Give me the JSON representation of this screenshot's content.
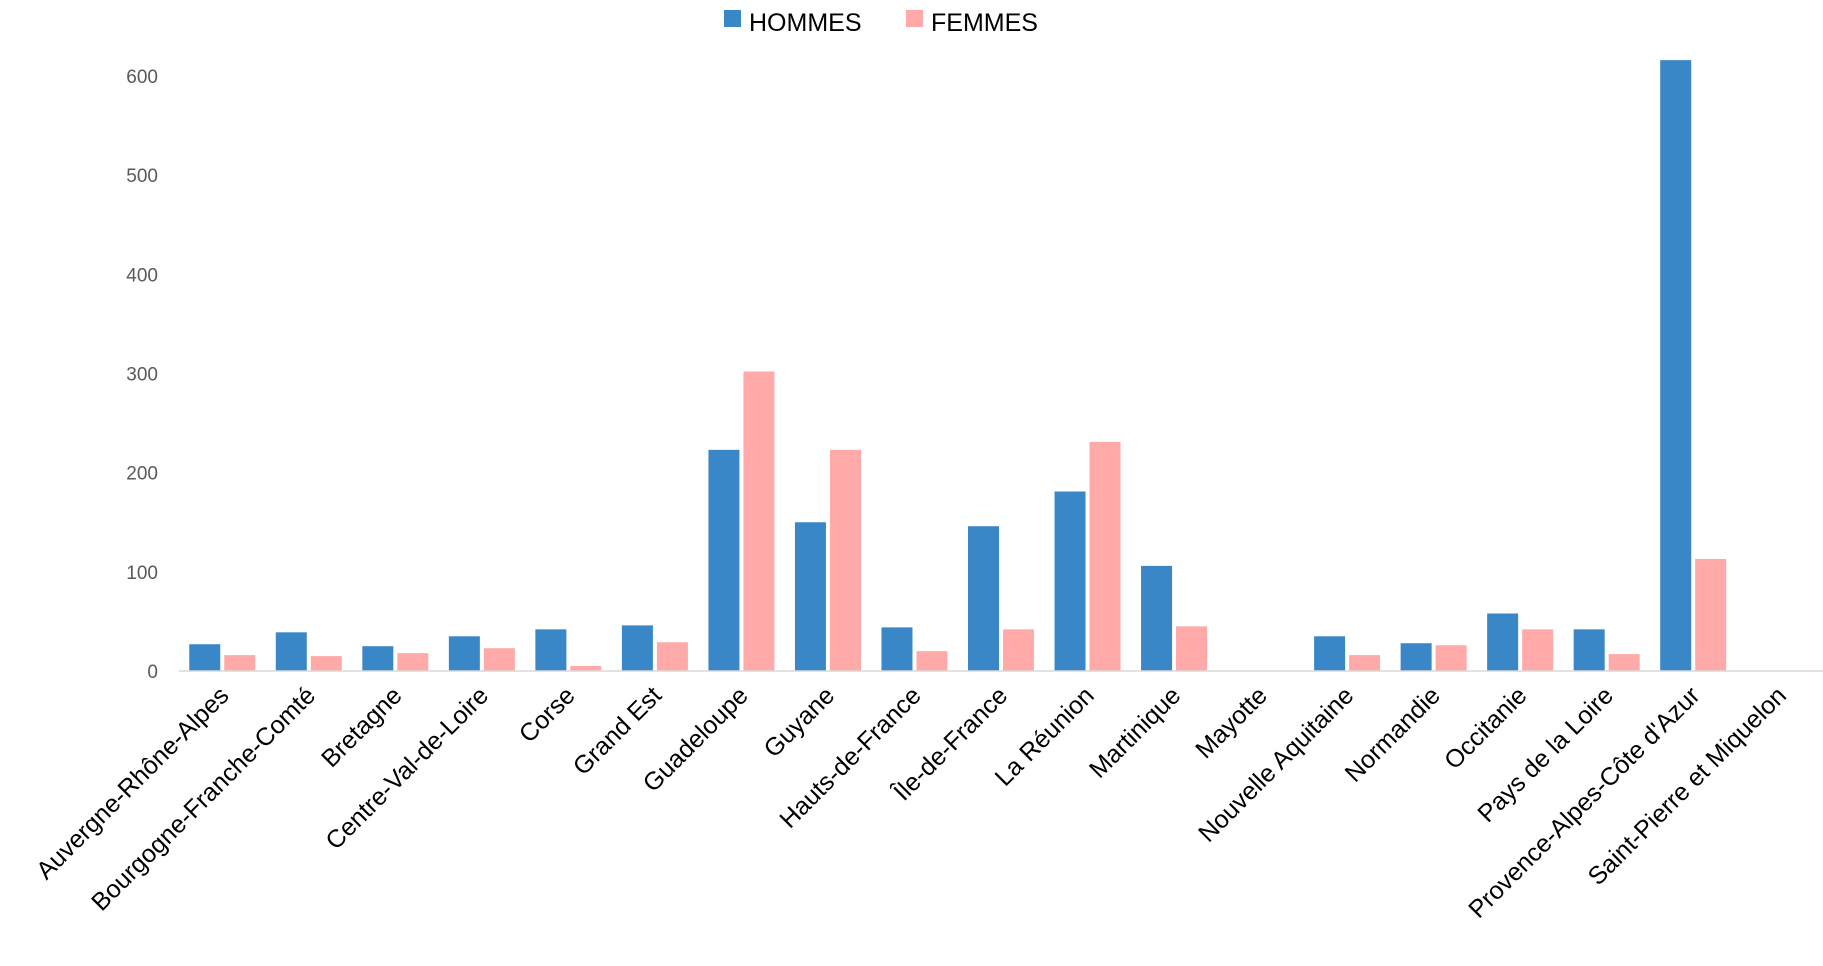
{
  "chart_data": {
    "type": "bar",
    "title": "",
    "xlabel": "",
    "ylabel": "",
    "ylim": [
      0,
      600
    ],
    "yticks": [
      0,
      100,
      200,
      300,
      400,
      500,
      600
    ],
    "grid": false,
    "legend_position": "top-center",
    "categories": [
      "Auvergne-Rhône-Alpes",
      "Bourgogne-Franche-Comté",
      "Bretagne",
      "Centre-Val-de-Loire",
      "Corse",
      "Grand Est",
      "Guadeloupe",
      "Guyane",
      "Hauts-de-France",
      "Île-de-France",
      "La Réunion",
      "Martinique",
      "Mayotte",
      "Nouvelle Aquitaine",
      "Normandie",
      "Occitanie",
      "Pays de la Loire",
      "Provence-Alpes-Côte d'Azur",
      "Saint-Pierre et Miquelon"
    ],
    "series": [
      {
        "name": "HOMMES",
        "color": "#3A87C7",
        "values": [
          27,
          39,
          25,
          35,
          42,
          46,
          223,
          150,
          44,
          146,
          181,
          106,
          0,
          35,
          28,
          58,
          42,
          616,
          0
        ]
      },
      {
        "name": "FEMMES",
        "color": "#FFA9A8",
        "values": [
          16,
          15,
          18,
          23,
          5,
          29,
          302,
          223,
          20,
          42,
          231,
          45,
          0,
          16,
          26,
          42,
          17,
          113,
          0
        ]
      }
    ]
  }
}
